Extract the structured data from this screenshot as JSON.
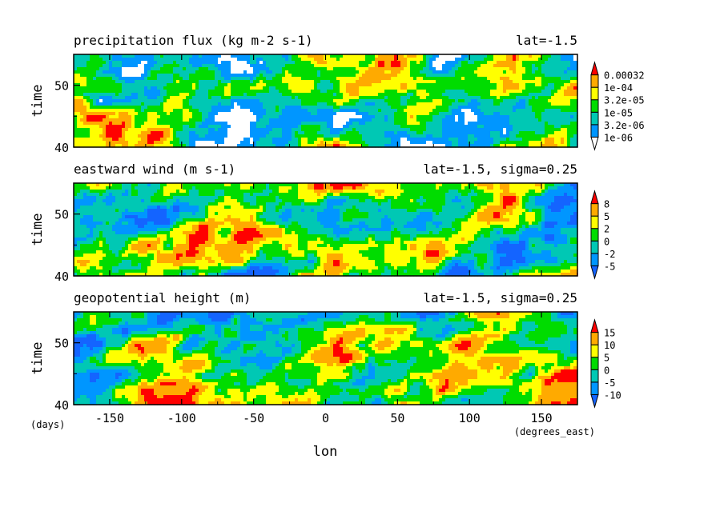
{
  "chart_data": [
    {
      "type": "heatmap",
      "title": "precipitation flux (kg m-2 s-1)",
      "annotation": "lat=-1.5",
      "ylabel": "time",
      "ylim": [
        40,
        55
      ],
      "y_ticks": [
        "40",
        "50"
      ],
      "xlim": [
        -175,
        175
      ],
      "colorbar": {
        "labels": [
          "1e-06",
          "3.2e-06",
          "1e-05",
          "3.2e-05",
          "1e-04",
          "0.00032"
        ],
        "colors": [
          "#ffffff",
          "#0096ff",
          "#00c8b4",
          "#00dc00",
          "#ffff00",
          "#ffaa00",
          "#ff0000"
        ]
      },
      "seed": 11
    },
    {
      "type": "heatmap",
      "title": "eastward wind (m s-1)",
      "annotation": "lat=-1.5, sigma=0.25",
      "ylabel": "time",
      "ylim": [
        40,
        55
      ],
      "y_ticks": [
        "40",
        "50"
      ],
      "xlim": [
        -175,
        175
      ],
      "colorbar": {
        "labels": [
          "-5",
          "-2",
          "0",
          "2",
          "5",
          "8"
        ],
        "colors": [
          "#1464ff",
          "#0096ff",
          "#00c8b4",
          "#00dc00",
          "#ffff00",
          "#ffaa00",
          "#ff0000"
        ]
      },
      "seed": 23
    },
    {
      "type": "heatmap",
      "title": "geopotential height (m)",
      "annotation": "lat=-1.5, sigma=0.25",
      "ylabel": "time",
      "ylim": [
        40,
        55
      ],
      "y_ticks": [
        "40",
        "50"
      ],
      "xlim": [
        -175,
        175
      ],
      "colorbar": {
        "labels": [
          "-10",
          "-5",
          "0",
          "5",
          "10",
          "15"
        ],
        "colors": [
          "#1464ff",
          "#0096ff",
          "#00c8b4",
          "#00dc00",
          "#ffff00",
          "#ffaa00",
          "#ff0000"
        ]
      },
      "seed": 37
    }
  ],
  "x_axis": {
    "label": "lon",
    "units": "(degrees_east)",
    "tick_values": [
      -150,
      -100,
      -50,
      0,
      50,
      100,
      150
    ],
    "tick_labels": [
      "-150",
      "-100",
      "-50",
      "0",
      "50",
      "100",
      "150"
    ]
  },
  "y_units": "(days)"
}
